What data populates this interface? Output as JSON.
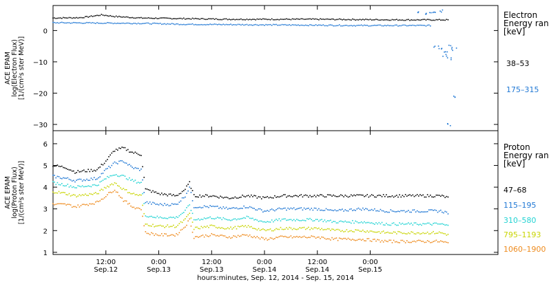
{
  "chart_data": [
    {
      "type": "scatter",
      "panel": "electron",
      "ylabel": [
        "ACE EPAM",
        "log(Electron Flux)",
        "[1/(cm²s ster MeV)]"
      ],
      "ylim": [
        -32,
        8
      ],
      "yticks": [
        0,
        -10,
        -20,
        -30
      ],
      "ytick_labels": [
        "0",
        "−10",
        "−20",
        "−30"
      ],
      "xlim": [
        0,
        101
      ],
      "x_unit": "hours since Sep 12, 2014 00:00",
      "legend_title": [
        "Electron",
        "Energy ran",
        "[keV]"
      ],
      "legend_placement": "right",
      "series": [
        {
          "name": "38–53",
          "color": "#000000",
          "points": [
            [
              0,
              4.0
            ],
            [
              6,
              4.1
            ],
            [
              8,
              4.4
            ],
            [
              11,
              5.0
            ],
            [
              14,
              4.5
            ],
            [
              20,
              4.0
            ],
            [
              30,
              3.8
            ],
            [
              40,
              3.6
            ],
            [
              50,
              3.6
            ],
            [
              60,
              3.6
            ],
            [
              70,
              3.5
            ],
            [
              80,
              3.4
            ],
            [
              86,
              3.4
            ],
            [
              90,
              3.4
            ]
          ]
        },
        {
          "name": "175–315",
          "color": "#1f77d4",
          "points": [
            [
              0,
              2.5
            ],
            [
              10,
              2.4
            ],
            [
              20,
              2.3
            ],
            [
              30,
              2.0
            ],
            [
              40,
              1.9
            ],
            [
              50,
              1.8
            ],
            [
              60,
              1.7
            ],
            [
              70,
              1.6
            ],
            [
              80,
              1.6
            ],
            [
              86,
              1.6
            ]
          ],
          "scattered": [
            [
              83,
              6
            ],
            [
              85,
              5.5
            ],
            [
              86,
              6
            ],
            [
              87,
              5.8
            ],
            [
              88,
              6.2
            ],
            [
              87,
              -5
            ],
            [
              88,
              -6
            ],
            [
              89,
              -7
            ],
            [
              90,
              -5
            ],
            [
              91,
              -6
            ],
            [
              89,
              -8
            ],
            [
              90,
              -9
            ],
            [
              91,
              -21
            ],
            [
              90,
              -30
            ]
          ]
        }
      ]
    },
    {
      "type": "scatter",
      "panel": "proton",
      "ylabel": [
        "ACE EPAM",
        "log(Proton Flux)",
        "[1/(cm²s ster MeV)]"
      ],
      "ylim": [
        0.9,
        6.6
      ],
      "yticks": [
        1,
        2,
        3,
        4,
        5,
        6
      ],
      "ytick_labels": [
        "1",
        "2",
        "3",
        "4",
        "5",
        "6"
      ],
      "xlim": [
        0,
        101
      ],
      "x_unit": "hours since Sep 12, 2014 00:00",
      "legend_title": [
        "Proton",
        "Energy ran",
        "[keV]"
      ],
      "legend_placement": "right",
      "series": [
        {
          "name": "47–68",
          "color": "#000000",
          "points": [
            [
              0,
              5.0
            ],
            [
              3,
              4.9
            ],
            [
              5,
              4.7
            ],
            [
              10,
              4.8
            ],
            [
              12,
              5.2
            ],
            [
              14,
              5.7
            ],
            [
              16,
              5.8
            ],
            [
              18,
              5.6
            ],
            [
              20,
              5.5
            ],
            [
              21,
              3.9
            ],
            [
              24,
              3.7
            ],
            [
              28,
              3.6
            ],
            [
              30,
              3.9
            ],
            [
              31,
              4.2
            ],
            [
              32,
              3.6
            ],
            [
              36,
              3.6
            ],
            [
              40,
              3.5
            ],
            [
              44,
              3.6
            ],
            [
              48,
              3.5
            ],
            [
              52,
              3.6
            ],
            [
              56,
              3.6
            ],
            [
              60,
              3.6
            ],
            [
              64,
              3.6
            ],
            [
              70,
              3.6
            ],
            [
              76,
              3.6
            ],
            [
              82,
              3.6
            ],
            [
              88,
              3.6
            ],
            [
              90,
              3.5
            ]
          ]
        },
        {
          "name": "115–195",
          "color": "#1f77d4",
          "points": [
            [
              0,
              4.5
            ],
            [
              3,
              4.4
            ],
            [
              5,
              4.3
            ],
            [
              10,
              4.4
            ],
            [
              12,
              4.8
            ],
            [
              14,
              5.1
            ],
            [
              16,
              5.2
            ],
            [
              18,
              4.9
            ],
            [
              20,
              4.8
            ],
            [
              21,
              3.3
            ],
            [
              24,
              3.2
            ],
            [
              28,
              3.2
            ],
            [
              30,
              3.6
            ],
            [
              31,
              4.0
            ],
            [
              32,
              3.1
            ],
            [
              36,
              3.1
            ],
            [
              40,
              3.0
            ],
            [
              44,
              3.1
            ],
            [
              48,
              2.9
            ],
            [
              52,
              3.0
            ],
            [
              56,
              3.0
            ],
            [
              60,
              3.0
            ],
            [
              64,
              2.9
            ],
            [
              70,
              3.0
            ],
            [
              76,
              2.9
            ],
            [
              82,
              2.9
            ],
            [
              88,
              2.9
            ],
            [
              90,
              2.8
            ]
          ]
        },
        {
          "name": "310–580",
          "color": "#22d3d3",
          "points": [
            [
              0,
              4.2
            ],
            [
              3,
              4.1
            ],
            [
              5,
              4.0
            ],
            [
              10,
              4.1
            ],
            [
              12,
              4.4
            ],
            [
              14,
              4.6
            ],
            [
              16,
              4.5
            ],
            [
              18,
              4.3
            ],
            [
              20,
              4.2
            ],
            [
              21,
              2.7
            ],
            [
              24,
              2.6
            ],
            [
              28,
              2.6
            ],
            [
              30,
              2.9
            ],
            [
              31,
              3.2
            ],
            [
              32,
              2.5
            ],
            [
              36,
              2.6
            ],
            [
              40,
              2.5
            ],
            [
              44,
              2.6
            ],
            [
              48,
              2.4
            ],
            [
              52,
              2.5
            ],
            [
              56,
              2.5
            ],
            [
              60,
              2.5
            ],
            [
              64,
              2.4
            ],
            [
              70,
              2.4
            ],
            [
              76,
              2.3
            ],
            [
              82,
              2.3
            ],
            [
              88,
              2.3
            ],
            [
              90,
              2.2
            ]
          ]
        },
        {
          "name": "795–1193",
          "color": "#c8d400",
          "points": [
            [
              0,
              3.8
            ],
            [
              3,
              3.7
            ],
            [
              5,
              3.6
            ],
            [
              10,
              3.7
            ],
            [
              12,
              4.0
            ],
            [
              14,
              4.2
            ],
            [
              16,
              3.9
            ],
            [
              18,
              3.7
            ],
            [
              20,
              3.6
            ],
            [
              21,
              2.3
            ],
            [
              24,
              2.2
            ],
            [
              28,
              2.2
            ],
            [
              30,
              2.5
            ],
            [
              31,
              2.8
            ],
            [
              32,
              2.1
            ],
            [
              36,
              2.2
            ],
            [
              40,
              2.1
            ],
            [
              44,
              2.2
            ],
            [
              48,
              2.0
            ],
            [
              52,
              2.1
            ],
            [
              56,
              2.1
            ],
            [
              60,
              2.1
            ],
            [
              64,
              2.0
            ],
            [
              70,
              2.0
            ],
            [
              76,
              1.9
            ],
            [
              82,
              1.9
            ],
            [
              88,
              1.9
            ],
            [
              90,
              1.8
            ]
          ]
        },
        {
          "name": "1060–1900",
          "color": "#ee8a1c",
          "points": [
            [
              0,
              3.2
            ],
            [
              3,
              3.2
            ],
            [
              5,
              3.1
            ],
            [
              10,
              3.3
            ],
            [
              12,
              3.6
            ],
            [
              14,
              3.9
            ],
            [
              16,
              3.4
            ],
            [
              18,
              3.1
            ],
            [
              20,
              3.0
            ],
            [
              21,
              1.9
            ],
            [
              24,
              1.8
            ],
            [
              28,
              1.8
            ],
            [
              30,
              2.2
            ],
            [
              31,
              2.5
            ],
            [
              32,
              1.7
            ],
            [
              36,
              1.8
            ],
            [
              40,
              1.7
            ],
            [
              44,
              1.8
            ],
            [
              48,
              1.6
            ],
            [
              52,
              1.7
            ],
            [
              56,
              1.7
            ],
            [
              60,
              1.7
            ],
            [
              64,
              1.6
            ],
            [
              70,
              1.6
            ],
            [
              76,
              1.5
            ],
            [
              82,
              1.5
            ],
            [
              88,
              1.5
            ],
            [
              90,
              1.4
            ]
          ]
        }
      ]
    }
  ],
  "x_axis": {
    "ticks": [
      {
        "hour": 12,
        "time": "12:00",
        "date": "Sep.12"
      },
      {
        "hour": 24,
        "time": "0:00",
        "date": "Sep.13"
      },
      {
        "hour": 36,
        "time": "12:00",
        "date": "Sep.13"
      },
      {
        "hour": 48,
        "time": "0:00",
        "date": "Sep.14"
      },
      {
        "hour": 60,
        "time": "12:00",
        "date": "Sep.14"
      },
      {
        "hour": 72,
        "time": "0:00",
        "date": "Sep.15"
      }
    ],
    "title": "hours:minutes, Sep. 12, 2014 - Sep. 15, 2014"
  }
}
